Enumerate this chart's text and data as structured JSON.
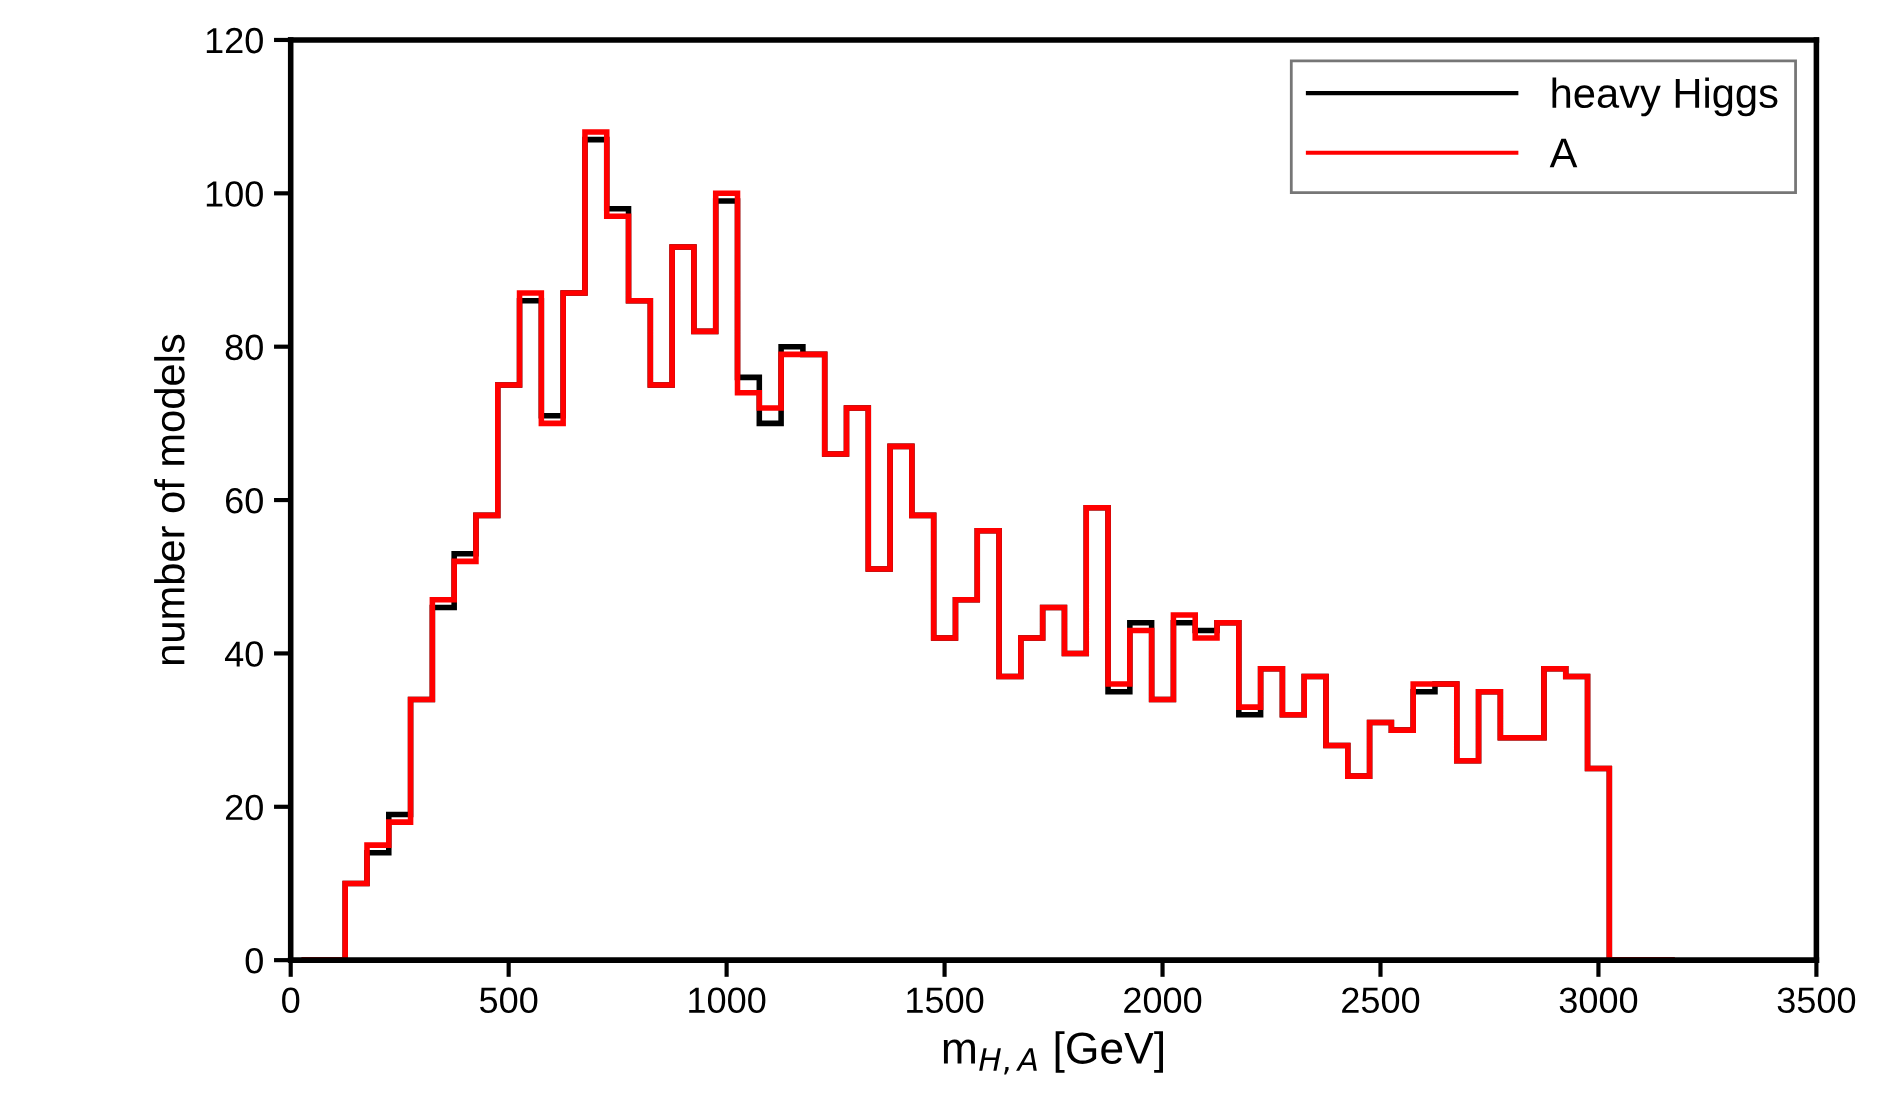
{
  "chart_data": {
    "type": "histogram",
    "xlabel": "m$_{H,A}$ [GeV]",
    "ylabel": "number of models",
    "bins": [
      25,
      75,
      125,
      175,
      225,
      275,
      325,
      375,
      425,
      475,
      525,
      575,
      625,
      675,
      725,
      775,
      825,
      875,
      925,
      975,
      1025,
      1075,
      1125,
      1175,
      1225,
      1275,
      1325,
      1375,
      1425,
      1475,
      1525,
      1575,
      1625,
      1675,
      1725,
      1775,
      1825,
      1875,
      1925,
      1975,
      2025,
      2075,
      2125,
      2175,
      2225,
      2275,
      2325,
      2375,
      2425,
      2475,
      2525,
      2575,
      2625,
      2675,
      2725,
      2775,
      2825,
      2875,
      2925,
      2975,
      3025,
      3075,
      3125,
      3175
    ],
    "series": [
      {
        "name": "heavy Higgs",
        "color": "#000000",
        "values": [
          0,
          0,
          10,
          14,
          19,
          34,
          46,
          53,
          58,
          75,
          86,
          71,
          87,
          107,
          98,
          86,
          75,
          93,
          82,
          99,
          76,
          70,
          80,
          79,
          66,
          72,
          51,
          67,
          58,
          42,
          47,
          56,
          37,
          42,
          46,
          40,
          59,
          35,
          44,
          34,
          44,
          43,
          44,
          32,
          38,
          32,
          37,
          28,
          24,
          31,
          30,
          35,
          36,
          26,
          35,
          29,
          29,
          38,
          37,
          25,
          0,
          0,
          0
        ]
      },
      {
        "name": "A",
        "color": "#ff0000",
        "values": [
          0,
          0,
          10,
          15,
          18,
          34,
          47,
          52,
          58,
          75,
          87,
          70,
          87,
          108,
          97,
          86,
          75,
          93,
          82,
          100,
          74,
          72,
          79,
          79,
          66,
          72,
          51,
          67,
          58,
          42,
          47,
          56,
          37,
          42,
          46,
          40,
          59,
          36,
          43,
          34,
          45,
          42,
          44,
          33,
          38,
          32,
          37,
          28,
          24,
          31,
          30,
          36,
          36,
          26,
          35,
          29,
          29,
          38,
          37,
          25,
          0,
          0,
          0
        ]
      }
    ],
    "xlim": [
      0,
      3500
    ],
    "xticks": [
      0,
      500,
      1000,
      1500,
      2000,
      2500,
      3000,
      3500
    ],
    "ylim": [
      0,
      120
    ],
    "yticks": [
      0,
      20,
      40,
      60,
      80,
      100,
      120
    ],
    "grid": false,
    "legend": "top right"
  }
}
